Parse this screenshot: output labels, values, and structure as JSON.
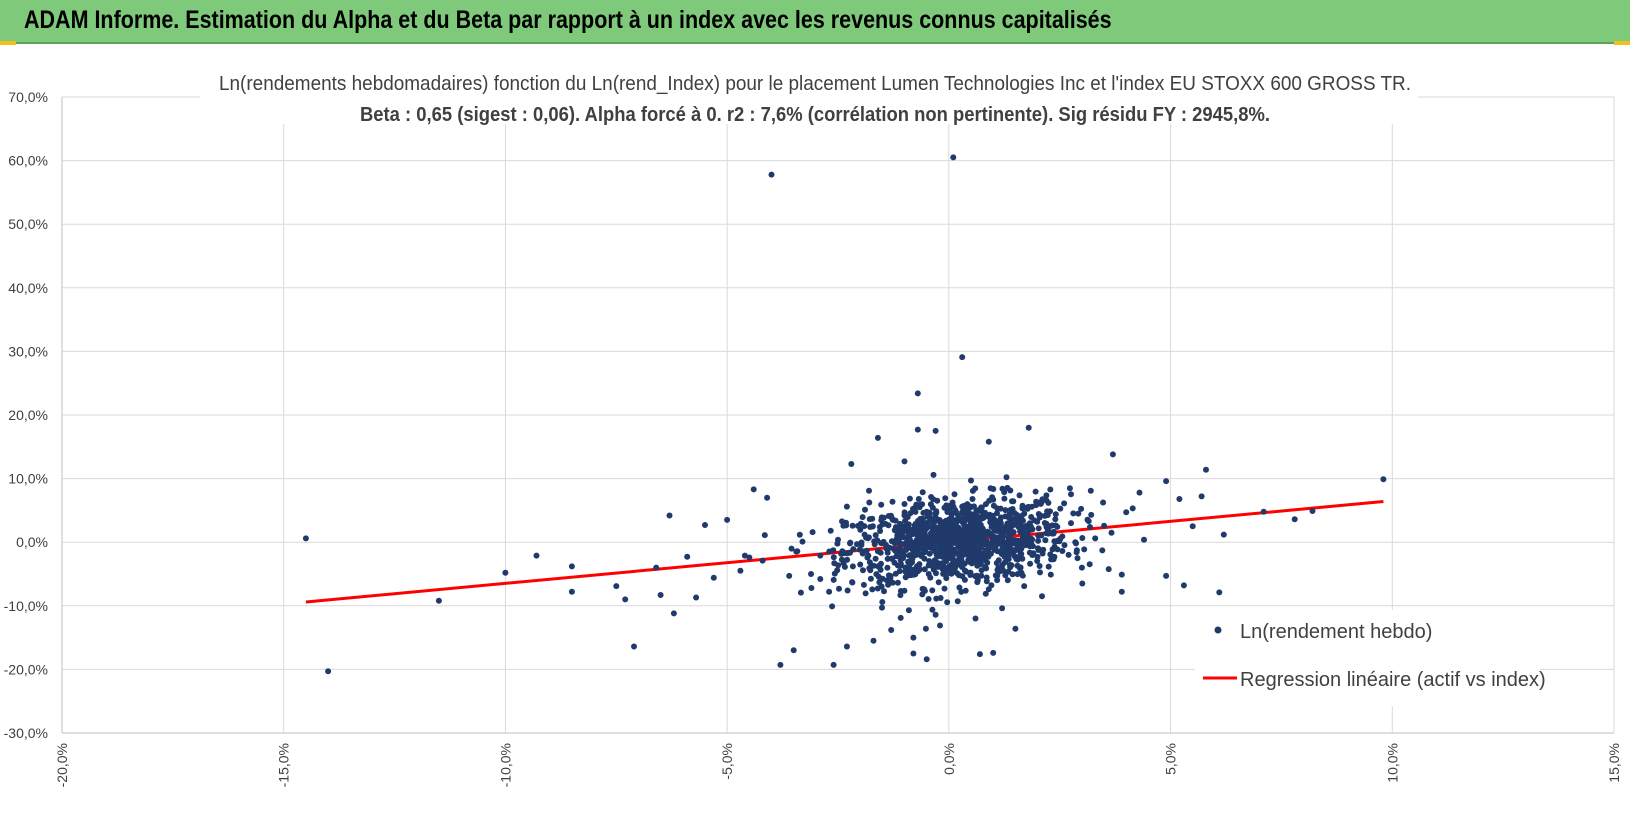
{
  "header": {
    "title": "ADAM Informe. Estimation du Alpha et du Beta par rapport à un index avec les revenus connus capitalisés",
    "background_color": "#7fc97a",
    "accent_color": "#f2c01a"
  },
  "chart_data": {
    "type": "scatter",
    "title": "Ln(rendements hebdomadaires) fonction du Ln(rend_Index) pour le placement Lumen Technologies Inc et l'index EU STOXX 600 GROSS TR.",
    "subtitle": "Beta : 0,65 (sigest : 0,06). Alpha forcé à 0. r2 : 7,6% (corrélation non pertinente). Sig résidu FY : 2945,8%.",
    "xlabel": "",
    "ylabel": "",
    "xlim": [
      -20,
      15
    ],
    "ylim": [
      -30,
      70
    ],
    "x_ticks": [
      -20,
      -15,
      -10,
      -5,
      0,
      5,
      10,
      15
    ],
    "x_tick_labels": [
      "-20,0%",
      "-15,0%",
      "-10,0%",
      "-5,0%",
      "0,0%",
      "5,0%",
      "10,0%",
      "15,0%"
    ],
    "y_ticks": [
      -30,
      -20,
      -10,
      0,
      10,
      20,
      30,
      40,
      50,
      60,
      70
    ],
    "y_tick_labels": [
      "-30,0%",
      "-20,0%",
      "-10,0%",
      "0,0%",
      "10,0%",
      "20,0%",
      "30,0%",
      "40,0%",
      "50,0%",
      "60,0%",
      "70,0%"
    ],
    "grid": true,
    "legend_position": "right",
    "series": [
      {
        "name": "Ln(rendement hebdo)",
        "kind": "scatter",
        "color": "#1f3a6b",
        "points": [
          [
            0.1,
            60.5
          ],
          [
            -4.0,
            57.8
          ],
          [
            0.3,
            29.1
          ],
          [
            -0.7,
            23.4
          ],
          [
            -0.7,
            17.7
          ],
          [
            -0.3,
            17.5
          ],
          [
            1.8,
            18.0
          ],
          [
            -1.6,
            16.4
          ],
          [
            0.9,
            15.8
          ],
          [
            -1.0,
            12.7
          ],
          [
            3.7,
            13.8
          ],
          [
            -2.2,
            12.3
          ],
          [
            5.8,
            11.4
          ],
          [
            9.8,
            9.9
          ],
          [
            -4.4,
            8.3
          ],
          [
            4.9,
            9.6
          ],
          [
            -14.5,
            0.6
          ],
          [
            -14.0,
            -20.3
          ],
          [
            -11.5,
            -9.2
          ],
          [
            -10.0,
            -4.8
          ],
          [
            -9.3,
            -2.1
          ],
          [
            -8.5,
            -3.8
          ],
          [
            -8.5,
            -7.8
          ],
          [
            -7.5,
            -6.9
          ],
          [
            -7.3,
            -9.0
          ],
          [
            -7.1,
            -16.4
          ],
          [
            -6.5,
            -8.3
          ],
          [
            -6.3,
            4.2
          ],
          [
            -6.2,
            -11.2
          ],
          [
            -5.7,
            -8.7
          ],
          [
            -5.5,
            2.7
          ],
          [
            -5.0,
            3.5
          ],
          [
            -4.6,
            -2.1
          ],
          [
            -4.1,
            7.0
          ],
          [
            -3.8,
            -19.3
          ],
          [
            -3.5,
            -17.0
          ],
          [
            -2.6,
            -19.3
          ],
          [
            -2.3,
            -16.4
          ],
          [
            -1.7,
            -15.5
          ],
          [
            -1.3,
            -13.8
          ],
          [
            -0.8,
            -15.0
          ],
          [
            -0.8,
            -17.5
          ],
          [
            -0.5,
            -18.4
          ],
          [
            -0.2,
            -13.1
          ],
          [
            0.7,
            -17.6
          ],
          [
            1.0,
            -17.4
          ],
          [
            1.5,
            -13.6
          ],
          [
            2.1,
            -8.5
          ],
          [
            3.9,
            -7.8
          ],
          [
            4.9,
            -5.3
          ],
          [
            5.3,
            -6.8
          ],
          [
            6.1,
            -7.9
          ],
          [
            5.5,
            2.5
          ],
          [
            7.1,
            4.8
          ],
          [
            7.8,
            3.6
          ],
          [
            8.2,
            4.9
          ],
          [
            4.3,
            7.8
          ],
          [
            5.2,
            6.8
          ],
          [
            5.7,
            7.2
          ],
          [
            6.2,
            1.2
          ],
          [
            3.2,
            8.1
          ],
          [
            2.6,
            6.1
          ],
          [
            3.9,
            -5.1
          ],
          [
            4.4,
            0.4
          ],
          [
            3.5,
            2.6
          ],
          [
            4.0,
            4.7
          ],
          [
            2.9,
            -2.5
          ],
          [
            3.3,
            0.6
          ],
          [
            2.4,
            3.6
          ],
          [
            1.3,
            10.2
          ],
          [
            0.5,
            9.7
          ],
          [
            -0.4,
            7.1
          ],
          [
            -1.0,
            6.0
          ],
          [
            -1.8,
            8.1
          ],
          [
            -2.3,
            5.6
          ],
          [
            -2.9,
            -2.1
          ],
          [
            -3.1,
            -7.2
          ],
          [
            -3.3,
            0.1
          ],
          [
            -3.6,
            -5.3
          ],
          [
            -4.2,
            -2.9
          ],
          [
            -4.7,
            -4.5
          ],
          [
            -5.3,
            -5.6
          ],
          [
            -5.9,
            -2.3
          ],
          [
            -6.6,
            -4.0
          ],
          [
            -2.7,
            -7.8
          ],
          [
            -1.5,
            -9.4
          ],
          [
            -0.9,
            -10.7
          ],
          [
            -0.3,
            -11.4
          ],
          [
            0.6,
            -12.0
          ],
          [
            1.2,
            -10.4
          ],
          [
            1.7,
            -6.9
          ],
          [
            2.3,
            -5.1
          ],
          [
            3.0,
            -4.0
          ],
          [
            -2.0,
            -3.5
          ],
          [
            -1.4,
            -6.0
          ],
          [
            -0.6,
            -8.2
          ],
          [
            0.2,
            -9.3
          ],
          [
            0.9,
            -7.4
          ],
          [
            1.6,
            -4.9
          ],
          [
            2.7,
            -2.0
          ],
          [
            -1.2,
            3.4
          ],
          [
            -0.5,
            4.8
          ],
          [
            0.3,
            5.6
          ],
          [
            1.0,
            6.7
          ],
          [
            1.7,
            4.5
          ],
          [
            2.2,
            2.9
          ],
          [
            -1.9,
            1.2
          ],
          [
            -2.5,
            0.4
          ],
          [
            -0.9,
            2.1
          ],
          [
            0.0,
            2.6
          ]
        ]
      },
      {
        "name": "Regression linéaire (actif vs index)",
        "kind": "line",
        "color": "#ff0000",
        "points": [
          [
            -14.5,
            -9.4
          ],
          [
            9.8,
            6.4
          ]
        ]
      }
    ]
  }
}
